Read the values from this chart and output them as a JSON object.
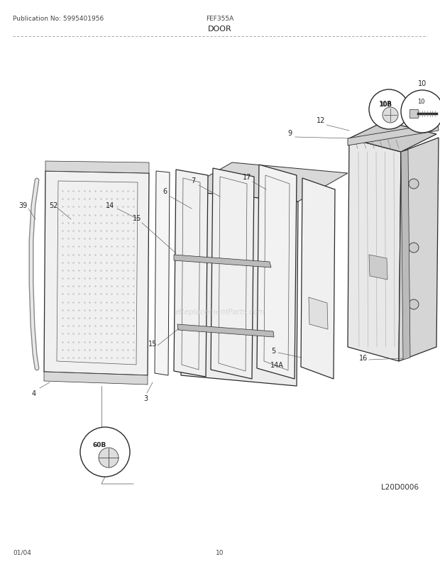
{
  "title": "DOOR",
  "pub_no": "Publication No: 5995401956",
  "model": "FEF355A",
  "date": "01/04",
  "page": "10",
  "diagram_id": "L20D0006",
  "watermark": "eReplacementParts.com",
  "bg_color": "#ffffff",
  "line_color": "#2a2a2a",
  "panel_face": "#f2f2f2",
  "panel_top": "#d8d8d8",
  "panel_side": "#e0e0e0"
}
